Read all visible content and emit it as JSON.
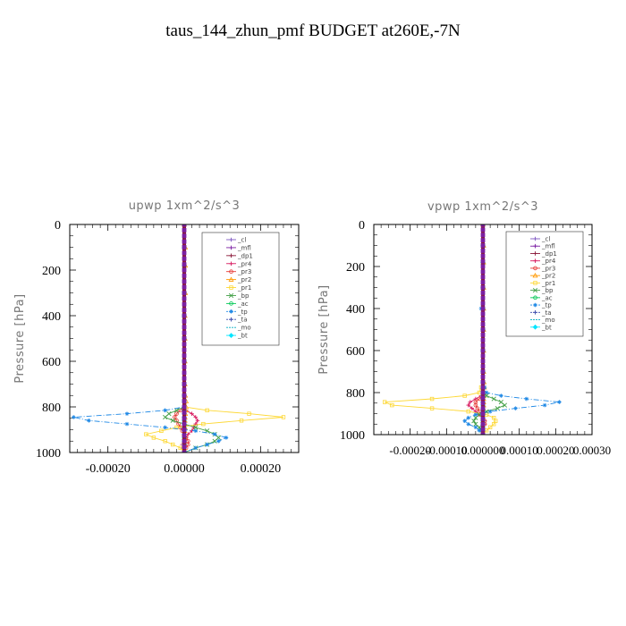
{
  "suptitle": "taus_144_zhun_pmf  BUDGET at260E,-7N",
  "chart_data": [
    {
      "type": "line",
      "title": "upwp   1xm^2/s^3",
      "xlabel": "",
      "ylabel": "Pressure [hPa]",
      "xlim": [
        -0.0003,
        0.0003
      ],
      "ylim": [
        1000,
        0
      ],
      "y_inverted": true,
      "x_ticks": [
        -0.0002,
        0.0,
        0.0002
      ],
      "x_tick_labels": [
        "-0.00020",
        "0.00000",
        "0.00020"
      ],
      "y_ticks": [
        0,
        200,
        400,
        600,
        800,
        1000
      ],
      "y_tick_labels": [
        "0",
        "200",
        "400",
        "600",
        "800",
        "1000"
      ],
      "grid": false,
      "legend_position": "top-right",
      "pressure_levels": [
        0,
        100,
        180,
        300,
        400,
        500,
        600,
        700,
        750,
        775,
        800,
        815,
        830,
        845,
        860,
        875,
        890,
        905,
        920,
        935,
        950,
        965,
        980,
        1000
      ],
      "series": [
        {
          "name": "_cl",
          "color": "#7e57c2",
          "marker": "+",
          "dash": "",
          "values": [
            0,
            0,
            0,
            0,
            0,
            0,
            0,
            0,
            0,
            0,
            0,
            0,
            0,
            0,
            0,
            0,
            0,
            0,
            0,
            0,
            0,
            0,
            0,
            0
          ]
        },
        {
          "name": "_mfl",
          "color": "#7b1fa2",
          "marker": "+",
          "dash": "",
          "values": [
            0,
            0,
            0,
            0,
            0,
            0,
            0,
            0,
            0,
            0,
            0,
            0,
            0,
            0,
            0,
            0,
            0,
            0,
            0,
            0,
            0,
            0,
            0,
            0
          ]
        },
        {
          "name": "_dp1",
          "color": "#8b1a3a",
          "marker": "+",
          "dash": "",
          "values": [
            0,
            0,
            0,
            0,
            0,
            0,
            0,
            0,
            0,
            0,
            0,
            0,
            0,
            0,
            0,
            0,
            0,
            0,
            0,
            0,
            0,
            0,
            0,
            0
          ]
        },
        {
          "name": "_pr4",
          "color": "#d81b60",
          "marker": "+",
          "dash": "",
          "values": [
            0,
            0,
            0,
            0,
            0,
            0,
            0,
            0,
            0,
            0,
            0,
            5e-06,
            2e-05,
            3e-05,
            3.5e-05,
            3e-05,
            2.5e-05,
            2e-05,
            1e-05,
            5e-06,
            0,
            -5e-06,
            -5e-06,
            0
          ]
        },
        {
          "name": "_pr3",
          "color": "#e53935",
          "marker": "o",
          "dash": "",
          "values": [
            0,
            0,
            0,
            0,
            0,
            0,
            0,
            0,
            0,
            0,
            0,
            -1e-05,
            -2e-05,
            -2.5e-05,
            -2e-05,
            -1.5e-05,
            -1e-05,
            -5e-06,
            0,
            5e-06,
            1e-05,
            1e-05,
            5e-06,
            0
          ]
        },
        {
          "name": "_pr2",
          "color": "#ff9800",
          "marker": "^",
          "dash": "",
          "values": [
            0,
            3e-06,
            3e-06,
            3e-06,
            2e-06,
            2e-06,
            2e-06,
            2e-06,
            3e-06,
            5e-06,
            5e-06,
            4e-06,
            3e-06,
            2e-06,
            2e-06,
            2e-06,
            2e-06,
            1e-06,
            0,
            0,
            0,
            0,
            0,
            0
          ]
        },
        {
          "name": "_pr1",
          "color": "#fdd835",
          "marker": "s",
          "dash": "",
          "values": [
            0,
            0,
            0,
            0,
            0,
            0,
            0,
            0,
            0,
            0,
            0,
            6e-05,
            0.00017,
            0.00026,
            0.00015,
            5e-05,
            -2e-05,
            -6e-05,
            -0.0001,
            -8e-05,
            -5e-05,
            -3e-05,
            -1e-05,
            0
          ]
        },
        {
          "name": "_bp",
          "color": "#43a047",
          "marker": "x",
          "dash": "",
          "values": [
            0,
            0,
            0,
            0,
            0,
            0,
            0,
            0,
            0,
            0,
            0,
            -2e-05,
            -4e-05,
            -5e-05,
            -3e-05,
            0,
            3e-05,
            6e-05,
            8e-05,
            9e-05,
            8e-05,
            6e-05,
            3e-05,
            0
          ]
        },
        {
          "name": "_ac",
          "color": "#00c853",
          "marker": "o",
          "dash": "",
          "values": [
            0,
            0,
            0,
            0,
            0,
            0,
            0,
            0,
            0,
            0,
            0,
            0,
            0,
            0,
            0,
            0,
            0,
            0,
            0,
            0,
            0,
            0,
            0,
            0
          ]
        },
        {
          "name": "_tp",
          "color": "#1e88e5",
          "marker": "*",
          "dash": "6,2,1,2",
          "values": [
            0,
            0,
            0,
            0,
            0,
            0,
            0,
            0,
            0,
            0,
            0,
            -5e-05,
            -0.00015,
            -0.00029,
            -0.00025,
            -0.00015,
            -5e-05,
            3e-05,
            8e-05,
            0.00011,
            9e-05,
            6e-05,
            3e-05,
            0
          ]
        },
        {
          "name": "_ta",
          "color": "#3949ab",
          "marker": "+",
          "dash": "3,2",
          "values": [
            0,
            0,
            0,
            0,
            0,
            0,
            0,
            0,
            0,
            0,
            0,
            0,
            0,
            0,
            0,
            0,
            0,
            0,
            0,
            0,
            0,
            0,
            0,
            0
          ]
        },
        {
          "name": "_mo",
          "color": "#00acc1",
          "marker": "",
          "dash": "6,3",
          "values": [
            0,
            0,
            0,
            0,
            0,
            0,
            0,
            0,
            0,
            0,
            0,
            0,
            0,
            0,
            0,
            0,
            0,
            0,
            0,
            0,
            0,
            0,
            0,
            0
          ]
        },
        {
          "name": "_bt",
          "color": "#00e5ff",
          "marker": "D",
          "dash": "",
          "values": [
            0,
            0,
            0,
            0,
            0,
            0,
            0,
            0,
            0,
            0,
            0,
            0,
            0,
            0,
            0,
            0,
            0,
            0,
            0,
            0,
            0,
            0,
            0,
            0
          ]
        }
      ]
    },
    {
      "type": "line",
      "title": "vpwp   1xm^2/s^3",
      "xlabel": "",
      "ylabel": "Pressure [hPa]",
      "xlim": [
        -0.0003,
        0.0003
      ],
      "ylim": [
        1000,
        0
      ],
      "y_inverted": true,
      "x_ticks": [
        -0.0002,
        -0.0001,
        0.0,
        0.0001,
        0.0002,
        0.0003
      ],
      "x_tick_labels": [
        "-0.00020",
        "-0.00010",
        "0.000000",
        "0.00010",
        "0.00020",
        "0.00030"
      ],
      "y_ticks": [
        0,
        200,
        400,
        600,
        800,
        1000
      ],
      "y_tick_labels": [
        "0",
        "200",
        "400",
        "600",
        "800",
        "1000"
      ],
      "grid": false,
      "legend_position": "top-right",
      "pressure_levels": [
        0,
        100,
        180,
        300,
        400,
        500,
        600,
        700,
        750,
        775,
        800,
        815,
        830,
        845,
        860,
        875,
        890,
        905,
        920,
        935,
        950,
        965,
        980,
        1000
      ],
      "series": [
        {
          "name": "_cl",
          "color": "#7e57c2",
          "marker": "+",
          "dash": "",
          "values": [
            0,
            0,
            0,
            0,
            0,
            0,
            0,
            0,
            0,
            0,
            0,
            0,
            0,
            0,
            0,
            0,
            0,
            0,
            0,
            0,
            0,
            0,
            0,
            0
          ]
        },
        {
          "name": "_mfl",
          "color": "#7b1fa2",
          "marker": "+",
          "dash": "",
          "values": [
            0,
            0,
            0,
            0,
            0,
            0,
            0,
            0,
            0,
            0,
            0,
            0,
            0,
            0,
            0,
            0,
            0,
            0,
            0,
            0,
            0,
            0,
            0,
            0
          ]
        },
        {
          "name": "_dp1",
          "color": "#8b1a3a",
          "marker": "+",
          "dash": "",
          "values": [
            0,
            0,
            0,
            0,
            0,
            0,
            0,
            0,
            0,
            0,
            0,
            0,
            0,
            0,
            0,
            0,
            0,
            0,
            0,
            0,
            0,
            0,
            0,
            0
          ]
        },
        {
          "name": "_pr4",
          "color": "#d81b60",
          "marker": "+",
          "dash": "",
          "values": [
            0,
            0,
            0,
            0,
            0,
            0,
            0,
            0,
            0,
            0,
            0,
            -5e-06,
            -2e-05,
            -3.5e-05,
            -4e-05,
            -3e-05,
            -2e-05,
            -1e-05,
            0,
            5e-06,
            5e-06,
            0,
            0,
            0
          ]
        },
        {
          "name": "_pr3",
          "color": "#e53935",
          "marker": "o",
          "dash": "",
          "values": [
            0,
            0,
            0,
            0,
            0,
            0,
            0,
            0,
            0,
            0,
            0,
            0,
            -1e-05,
            -2e-05,
            -2e-05,
            -1.5e-05,
            -1e-05,
            -5e-06,
            0,
            5e-06,
            5e-06,
            0,
            0,
            0
          ]
        },
        {
          "name": "_pr2",
          "color": "#ff9800",
          "marker": "^",
          "dash": "",
          "values": [
            0,
            2e-06,
            2e-06,
            2e-06,
            2e-06,
            2e-06,
            2e-06,
            2e-06,
            3e-06,
            4e-06,
            4e-06,
            3e-06,
            2e-06,
            2e-06,
            2e-06,
            1e-06,
            1e-06,
            0,
            0,
            0,
            0,
            0,
            0,
            0
          ]
        },
        {
          "name": "_pr1",
          "color": "#fdd835",
          "marker": "s",
          "dash": "",
          "values": [
            0,
            0,
            0,
            0,
            0,
            0,
            0,
            0,
            0,
            -5e-06,
            -1e-05,
            -5e-05,
            -0.00014,
            -0.00027,
            -0.00025,
            -0.00014,
            -4e-05,
            1e-05,
            3e-05,
            3.5e-05,
            3e-05,
            2e-05,
            1e-05,
            0
          ]
        },
        {
          "name": "_bp",
          "color": "#43a047",
          "marker": "x",
          "dash": "",
          "values": [
            0,
            0,
            0,
            0,
            0,
            0,
            0,
            0,
            0,
            0,
            0,
            1e-05,
            3e-05,
            5e-05,
            6e-05,
            4e-05,
            1e-05,
            -1e-05,
            -2e-05,
            -2.5e-05,
            -2e-05,
            -1e-05,
            -5e-06,
            0
          ]
        },
        {
          "name": "_ac",
          "color": "#00c853",
          "marker": "o",
          "dash": "",
          "values": [
            0,
            0,
            0,
            0,
            0,
            0,
            0,
            0,
            0,
            0,
            0,
            0,
            0,
            0,
            0,
            0,
            0,
            0,
            0,
            0,
            0,
            0,
            0,
            0
          ]
        },
        {
          "name": "_tp",
          "color": "#1e88e5",
          "marker": "*",
          "dash": "6,2,1,2",
          "values": [
            0,
            0,
            0,
            0,
            -5e-06,
            0,
            0,
            0,
            0,
            5e-06,
            1e-05,
            5e-05,
            0.00012,
            0.00021,
            0.00017,
            9e-05,
            2e-05,
            -2e-05,
            -4e-05,
            -5e-05,
            -4e-05,
            -2e-05,
            -1e-05,
            0
          ]
        },
        {
          "name": "_ta",
          "color": "#3949ab",
          "marker": "+",
          "dash": "3,2",
          "values": [
            0,
            0,
            0,
            0,
            0,
            0,
            0,
            0,
            0,
            0,
            0,
            0,
            0,
            0,
            0,
            0,
            0,
            0,
            0,
            0,
            0,
            0,
            0,
            0
          ]
        },
        {
          "name": "_mo",
          "color": "#00acc1",
          "marker": "",
          "dash": "6,3",
          "values": [
            0,
            0,
            0,
            0,
            0,
            0,
            0,
            0,
            0,
            0,
            0,
            0,
            0,
            0,
            0,
            0,
            0,
            0,
            0,
            0,
            0,
            0,
            0,
            0
          ]
        },
        {
          "name": "_bt",
          "color": "#00e5ff",
          "marker": "D",
          "dash": "",
          "values": [
            0,
            0,
            0,
            0,
            0,
            0,
            0,
            0,
            0,
            0,
            0,
            0,
            0,
            0,
            0,
            0,
            0,
            0,
            0,
            0,
            0,
            0,
            0,
            0
          ]
        }
      ]
    }
  ]
}
